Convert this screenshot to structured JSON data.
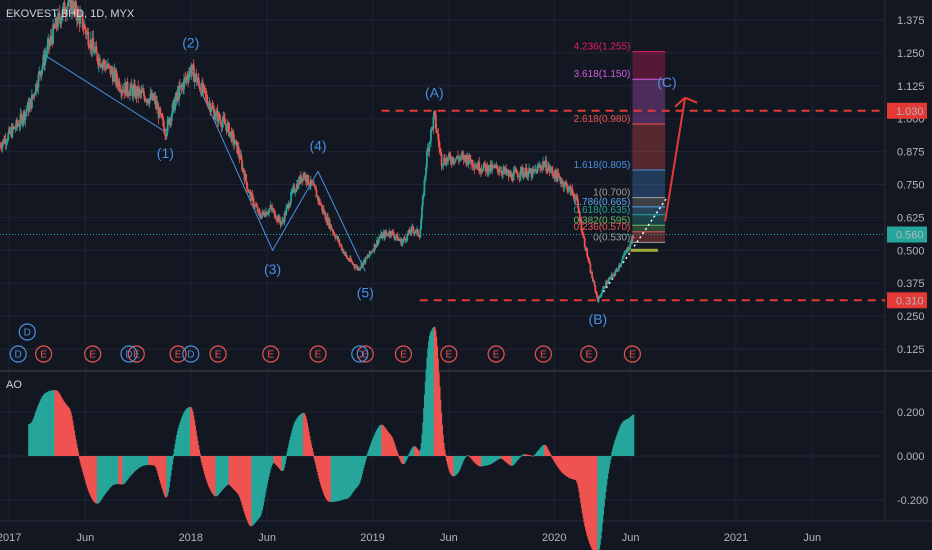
{
  "header": {
    "symbol": "EKOVEST BHD, 1D, MYX",
    "indicator": "AO"
  },
  "colors": {
    "background": "#131722",
    "grid": "#1f2433",
    "up": "#26a69a",
    "down": "#ef5350",
    "wave": "#4a90e2",
    "level_red": "#e53935",
    "price_line": "#26a69a"
  },
  "icons": [
    "dividend-icon",
    "earnings-icon"
  ],
  "chart_data": [
    {
      "type": "line",
      "title": "EKOVEST BHD, 1D, MYX",
      "x_ticks": [
        "2017",
        "Jun",
        "2018",
        "Jun",
        "2019",
        "Jun",
        "2020",
        "Jun",
        "2021",
        "Jun"
      ],
      "y_ticks": [
        "1.375",
        "1.250",
        "1.125",
        "1.000",
        "0.875",
        "0.750",
        "0.625",
        "0.500",
        "0.375",
        "0.250",
        "0.125"
      ],
      "ylim": [
        0.06,
        1.45
      ],
      "y_scale": "linear",
      "grid": true,
      "series": [
        {
          "values_approx": [
            [
              2016.95,
              0.9
            ],
            [
              2017.05,
              0.98
            ],
            [
              2017.12,
              1.06
            ],
            [
              2017.18,
              1.2
            ],
            [
              2017.26,
              1.36
            ],
            [
              2017.33,
              1.45
            ],
            [
              2017.4,
              1.37
            ],
            [
              2017.48,
              1.24
            ],
            [
              2017.56,
              1.18
            ],
            [
              2017.62,
              1.12
            ],
            [
              2017.7,
              1.1
            ],
            [
              2017.8,
              1.07
            ],
            [
              2017.86,
              0.95
            ],
            [
              2017.92,
              1.08
            ],
            [
              2018.0,
              1.19
            ],
            [
              2018.07,
              1.1
            ],
            [
              2018.13,
              1.02
            ],
            [
              2018.2,
              0.97
            ],
            [
              2018.26,
              0.88
            ],
            [
              2018.32,
              0.72
            ],
            [
              2018.38,
              0.63
            ],
            [
              2018.44,
              0.66
            ],
            [
              2018.5,
              0.6
            ],
            [
              2018.56,
              0.72
            ],
            [
              2018.62,
              0.79
            ],
            [
              2018.68,
              0.73
            ],
            [
              2018.74,
              0.63
            ],
            [
              2018.8,
              0.55
            ],
            [
              2018.86,
              0.47
            ],
            [
              2018.92,
              0.43
            ],
            [
              2018.98,
              0.48
            ],
            [
              2019.04,
              0.55
            ],
            [
              2019.1,
              0.57
            ],
            [
              2019.16,
              0.53
            ],
            [
              2019.22,
              0.58
            ],
            [
              2019.26,
              0.56
            ],
            [
              2019.3,
              0.87
            ],
            [
              2019.34,
              1.01
            ],
            [
              2019.38,
              0.84
            ],
            [
              2019.44,
              0.85
            ],
            [
              2019.52,
              0.85
            ],
            [
              2019.58,
              0.82
            ],
            [
              2019.64,
              0.81
            ],
            [
              2019.7,
              0.81
            ],
            [
              2019.76,
              0.78
            ],
            [
              2019.82,
              0.8
            ],
            [
              2019.88,
              0.79
            ],
            [
              2019.94,
              0.83
            ],
            [
              2020.0,
              0.79
            ],
            [
              2020.06,
              0.75
            ],
            [
              2020.12,
              0.7
            ],
            [
              2020.16,
              0.55
            ],
            [
              2020.2,
              0.42
            ],
            [
              2020.24,
              0.31
            ],
            [
              2020.28,
              0.37
            ],
            [
              2020.34,
              0.42
            ],
            [
              2020.4,
              0.5
            ],
            [
              2020.44,
              0.56
            ]
          ]
        }
      ],
      "wave_labels": [
        "(1)",
        "(2)",
        "(3)",
        "(4)",
        "(5)",
        "(A)",
        "(B)",
        "(C)"
      ],
      "levels": [
        {
          "label": "1.030",
          "value": 1.03
        },
        {
          "label": "0.310",
          "value": 0.31
        },
        {
          "label": "0.560",
          "value": 0.56
        }
      ],
      "fib_levels": [
        {
          "label": "4.236(1.255)",
          "value": 1.255,
          "color": "#e91e63"
        },
        {
          "label": "3.618(1.150)",
          "value": 1.15,
          "color": "#ce5ee0"
        },
        {
          "label": "2.618(0.980)",
          "value": 0.98,
          "color": "#ef5350"
        },
        {
          "label": "1.618(0.805)",
          "value": 0.805,
          "color": "#4a90e2"
        },
        {
          "label": "1(0.700)",
          "value": 0.7,
          "color": "#9e9e9e"
        },
        {
          "label": "0.786(0.665)",
          "value": 0.665,
          "color": "#5ba4e6"
        },
        {
          "label": "0.618(0.635)",
          "value": 0.635,
          "color": "#26a69a"
        },
        {
          "label": "0.382(0.595)",
          "value": 0.595,
          "color": "#66bb6a"
        },
        {
          "label": "0.236(0.570)",
          "value": 0.57,
          "color": "#ef5350"
        },
        {
          "label": "0(0.530)",
          "value": 0.53,
          "color": "#9e9e9e"
        }
      ],
      "markers": {
        "letters": [
          "D",
          "E"
        ],
        "E_times": [
          2017.19,
          2017.46,
          2017.7,
          2017.93,
          2018.15,
          2018.44,
          2018.7,
          2018.96,
          2019.17,
          2019.42,
          2019.68,
          2019.94,
          2020.19,
          2020.43
        ],
        "D_times": [
          2017.1,
          2017.66,
          2018.0,
          2018.93
        ]
      }
    },
    {
      "type": "bar",
      "title": "AO",
      "y_ticks": [
        "0.200",
        "0.000",
        "-0.200"
      ],
      "ylim": [
        -0.28,
        0.33
      ]
    }
  ]
}
